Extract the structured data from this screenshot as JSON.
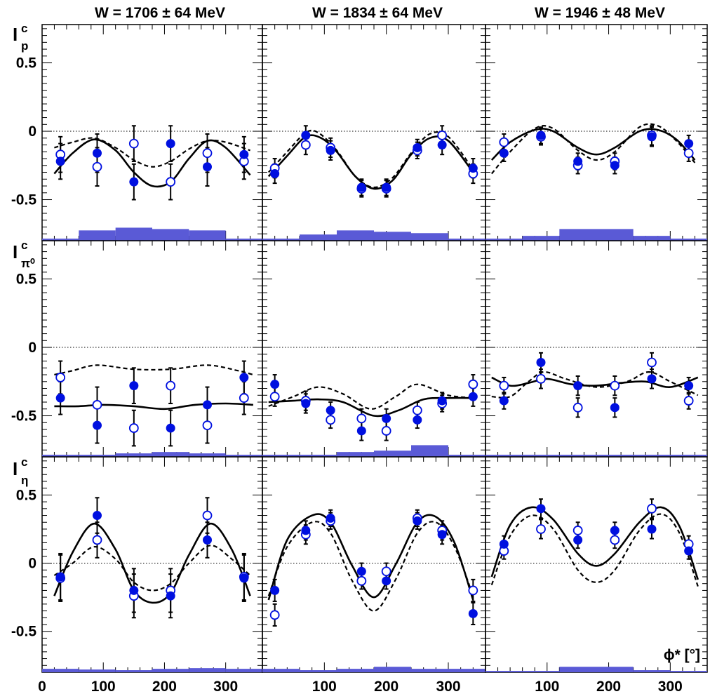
{
  "figure": {
    "col_titles": [
      "W = 1706 ± 64 MeV",
      "W = 1834 ± 64 MeV",
      "W = 1946 ± 48 MeV"
    ],
    "row_labels": [
      {
        "main": "I",
        "sup": "c",
        "sub": "p"
      },
      {
        "main": "I",
        "sup": "c",
        "sub": "π⁰"
      },
      {
        "main": "I",
        "sup": "c",
        "sub": "η"
      }
    ],
    "xlabel": "ϕ* [°]",
    "colors": {
      "filled": "#0010e0",
      "open": "#0010e0",
      "systematics": "#5a5ad6",
      "curve": "#000000"
    }
  },
  "chart_data": [
    {
      "type": "scatter",
      "row": 0,
      "col": 0,
      "x": [
        30,
        90,
        150,
        210,
        270,
        330
      ],
      "filled": [
        -0.22,
        -0.16,
        -0.37,
        -0.09,
        -0.26,
        -0.17
      ],
      "open": [
        -0.17,
        -0.26,
        -0.09,
        -0.37,
        -0.16,
        -0.22
      ],
      "err": [
        0.13,
        0.14,
        0.13,
        0.13,
        0.14,
        0.13
      ],
      "solid": [
        [
          20,
          -0.31
        ],
        [
          50,
          -0.16
        ],
        [
          85,
          -0.06
        ],
        [
          120,
          -0.14
        ],
        [
          150,
          -0.3
        ],
        [
          180,
          -0.4
        ],
        [
          210,
          -0.37
        ],
        [
          240,
          -0.2
        ],
        [
          270,
          -0.07
        ],
        [
          300,
          -0.12
        ],
        [
          340,
          -0.32
        ]
      ],
      "dashed": [
        [
          20,
          -0.12
        ],
        [
          50,
          -0.08
        ],
        [
          85,
          -0.05
        ],
        [
          120,
          -0.12
        ],
        [
          150,
          -0.21
        ],
        [
          180,
          -0.26
        ],
        [
          210,
          -0.22
        ],
        [
          240,
          -0.13
        ],
        [
          270,
          -0.07
        ],
        [
          300,
          -0.08
        ],
        [
          340,
          -0.14
        ]
      ],
      "syst": [
        [
          0,
          60,
          0.01
        ],
        [
          60,
          120,
          0.07
        ],
        [
          120,
          180,
          0.09
        ],
        [
          180,
          240,
          0.08
        ],
        [
          240,
          300,
          0.07
        ],
        [
          300,
          360,
          0.01
        ]
      ],
      "ylim": [
        -0.8,
        0.78
      ]
    },
    {
      "type": "scatter",
      "row": 0,
      "col": 1,
      "x": [
        20,
        70,
        110,
        160,
        200,
        250,
        290,
        340
      ],
      "filled": [
        -0.31,
        -0.03,
        -0.14,
        -0.41,
        -0.41,
        -0.12,
        -0.1,
        -0.27
      ],
      "open": [
        -0.27,
        -0.1,
        -0.12,
        -0.42,
        -0.42,
        -0.14,
        -0.03,
        -0.31
      ],
      "err": [
        0.07,
        0.07,
        0.07,
        0.06,
        0.06,
        0.06,
        0.07,
        0.07
      ],
      "solid": [
        [
          10,
          -0.33
        ],
        [
          40,
          -0.18
        ],
        [
          70,
          -0.04
        ],
        [
          95,
          -0.05
        ],
        [
          120,
          -0.15
        ],
        [
          150,
          -0.33
        ],
        [
          180,
          -0.42
        ],
        [
          210,
          -0.36
        ],
        [
          240,
          -0.17
        ],
        [
          270,
          -0.05
        ],
        [
          300,
          -0.07
        ],
        [
          340,
          -0.3
        ]
      ],
      "dashed": [
        [
          10,
          -0.3
        ],
        [
          40,
          -0.15
        ],
        [
          70,
          -0.01
        ],
        [
          90,
          -0.01
        ],
        [
          120,
          -0.14
        ],
        [
          150,
          -0.33
        ],
        [
          180,
          -0.41
        ],
        [
          210,
          -0.34
        ],
        [
          240,
          -0.16
        ],
        [
          270,
          -0.02
        ],
        [
          300,
          -0.04
        ],
        [
          340,
          -0.28
        ]
      ],
      "syst": [
        [
          0,
          60,
          0.01
        ],
        [
          60,
          120,
          0.04
        ],
        [
          120,
          180,
          0.07
        ],
        [
          180,
          240,
          0.06
        ],
        [
          240,
          300,
          0.05
        ],
        [
          300,
          360,
          0.01
        ]
      ],
      "ylim": [
        -0.8,
        0.78
      ]
    },
    {
      "type": "scatter",
      "row": 0,
      "col": 2,
      "x": [
        30,
        90,
        150,
        210,
        270,
        330
      ],
      "filled": [
        -0.16,
        -0.03,
        -0.22,
        -0.25,
        -0.04,
        -0.09
      ],
      "open": [
        -0.08,
        -0.04,
        -0.25,
        -0.22,
        -0.03,
        -0.16
      ],
      "err": [
        0.06,
        0.06,
        0.06,
        0.06,
        0.07,
        0.06
      ],
      "solid": [
        [
          10,
          -0.21
        ],
        [
          40,
          -0.08
        ],
        [
          80,
          0.01
        ],
        [
          110,
          0.0
        ],
        [
          150,
          -0.12
        ],
        [
          180,
          -0.17
        ],
        [
          210,
          -0.12
        ],
        [
          250,
          0.0
        ],
        [
          280,
          0.01
        ],
        [
          310,
          -0.06
        ],
        [
          340,
          -0.21
        ]
      ],
      "dashed": [
        [
          10,
          -0.31
        ],
        [
          40,
          -0.15
        ],
        [
          80,
          0.02
        ],
        [
          110,
          0.02
        ],
        [
          150,
          -0.14
        ],
        [
          180,
          -0.21
        ],
        [
          210,
          -0.15
        ],
        [
          250,
          0.03
        ],
        [
          280,
          0.04
        ],
        [
          310,
          -0.07
        ],
        [
          340,
          -0.23
        ]
      ],
      "syst": [
        [
          0,
          60,
          0.01
        ],
        [
          60,
          120,
          0.03
        ],
        [
          120,
          180,
          0.08
        ],
        [
          180,
          240,
          0.08
        ],
        [
          240,
          300,
          0.03
        ],
        [
          300,
          360,
          0.01
        ]
      ],
      "ylim": [
        -0.8,
        0.78
      ]
    },
    {
      "type": "scatter",
      "row": 1,
      "col": 0,
      "x": [
        30,
        90,
        150,
        210,
        270,
        330
      ],
      "filled": [
        -0.37,
        -0.57,
        -0.28,
        -0.59,
        -0.42,
        -0.22
      ],
      "open": [
        -0.22,
        -0.42,
        -0.59,
        -0.28,
        -0.57,
        -0.37
      ],
      "err": [
        0.12,
        0.13,
        0.13,
        0.13,
        0.13,
        0.12
      ],
      "solid": [
        [
          20,
          -0.43
        ],
        [
          60,
          -0.43
        ],
        [
          100,
          -0.42
        ],
        [
          150,
          -0.43
        ],
        [
          200,
          -0.45
        ],
        [
          250,
          -0.42
        ],
        [
          300,
          -0.41
        ],
        [
          345,
          -0.42
        ]
      ],
      "dashed": [
        [
          20,
          -0.2
        ],
        [
          50,
          -0.17
        ],
        [
          90,
          -0.13
        ],
        [
          150,
          -0.16
        ],
        [
          210,
          -0.16
        ],
        [
          270,
          -0.13
        ],
        [
          320,
          -0.17
        ],
        [
          345,
          -0.2
        ]
      ],
      "syst": [
        [
          0,
          60,
          0.01
        ],
        [
          60,
          120,
          0.01
        ],
        [
          120,
          180,
          0.02
        ],
        [
          180,
          240,
          0.03
        ],
        [
          240,
          300,
          0.02
        ],
        [
          300,
          360,
          0.01
        ]
      ],
      "ylim": [
        -0.8,
        0.78
      ]
    },
    {
      "type": "scatter",
      "row": 1,
      "col": 1,
      "x": [
        20,
        70,
        110,
        160,
        200,
        250,
        290,
        340
      ],
      "filled": [
        -0.27,
        -0.41,
        -0.46,
        -0.61,
        -0.52,
        -0.53,
        -0.39,
        -0.36
      ],
      "open": [
        -0.36,
        -0.39,
        -0.53,
        -0.52,
        -0.61,
        -0.46,
        -0.41,
        -0.27
      ],
      "err": [
        0.07,
        0.07,
        0.06,
        0.07,
        0.07,
        0.06,
        0.06,
        0.07
      ],
      "solid": [
        [
          10,
          -0.4
        ],
        [
          50,
          -0.39
        ],
        [
          90,
          -0.38
        ],
        [
          130,
          -0.4
        ],
        [
          180,
          -0.5
        ],
        [
          220,
          -0.46
        ],
        [
          260,
          -0.38
        ],
        [
          300,
          -0.37
        ],
        [
          345,
          -0.37
        ]
      ],
      "dashed": [
        [
          10,
          -0.43
        ],
        [
          50,
          -0.36
        ],
        [
          90,
          -0.29
        ],
        [
          130,
          -0.34
        ],
        [
          175,
          -0.45
        ],
        [
          215,
          -0.36
        ],
        [
          250,
          -0.27
        ],
        [
          300,
          -0.35
        ],
        [
          345,
          -0.37
        ]
      ],
      "syst": [
        [
          0,
          60,
          0.01
        ],
        [
          60,
          120,
          0.01
        ],
        [
          120,
          180,
          0.03
        ],
        [
          180,
          240,
          0.04
        ],
        [
          240,
          300,
          0.08
        ],
        [
          300,
          360,
          0.01
        ]
      ],
      "ylim": [
        -0.8,
        0.78
      ]
    },
    {
      "type": "scatter",
      "row": 1,
      "col": 2,
      "x": [
        30,
        90,
        150,
        210,
        270,
        330
      ],
      "filled": [
        -0.39,
        -0.11,
        -0.28,
        -0.44,
        -0.23,
        -0.28
      ],
      "open": [
        -0.28,
        -0.23,
        -0.44,
        -0.28,
        -0.11,
        -0.39
      ],
      "err": [
        0.06,
        0.07,
        0.07,
        0.07,
        0.07,
        0.06
      ],
      "solid": [
        [
          10,
          -0.22
        ],
        [
          40,
          -0.28
        ],
        [
          70,
          -0.26
        ],
        [
          100,
          -0.23
        ],
        [
          140,
          -0.27
        ],
        [
          180,
          -0.28
        ],
        [
          220,
          -0.26
        ],
        [
          260,
          -0.25
        ],
        [
          300,
          -0.29
        ],
        [
          345,
          -0.22
        ]
      ],
      "dashed": [
        [
          10,
          -0.36
        ],
        [
          40,
          -0.36
        ],
        [
          70,
          -0.25
        ],
        [
          95,
          -0.18
        ],
        [
          130,
          -0.23
        ],
        [
          180,
          -0.29
        ],
        [
          230,
          -0.25
        ],
        [
          265,
          -0.18
        ],
        [
          300,
          -0.25
        ],
        [
          345,
          -0.35
        ]
      ],
      "syst": [
        [
          0,
          60,
          0.01
        ],
        [
          60,
          120,
          0.01
        ],
        [
          120,
          180,
          0.01
        ],
        [
          180,
          240,
          0.01
        ],
        [
          240,
          300,
          0.01
        ],
        [
          300,
          360,
          0.01
        ]
      ],
      "ylim": [
        -0.8,
        0.78
      ]
    },
    {
      "type": "scatter",
      "row": 2,
      "col": 0,
      "x": [
        30,
        90,
        150,
        210,
        270,
        330
      ],
      "filled": [
        -0.1,
        0.35,
        -0.2,
        -0.24,
        0.17,
        -0.11
      ],
      "open": [
        -0.11,
        0.17,
        -0.24,
        -0.2,
        0.35,
        -0.1
      ],
      "err": [
        0.17,
        0.13,
        0.16,
        0.16,
        0.13,
        0.17
      ],
      "solid": [
        [
          20,
          -0.24
        ],
        [
          50,
          0.08
        ],
        [
          85,
          0.29
        ],
        [
          120,
          0.1
        ],
        [
          150,
          -0.2
        ],
        [
          180,
          -0.29
        ],
        [
          210,
          -0.22
        ],
        [
          240,
          0.06
        ],
        [
          275,
          0.29
        ],
        [
          310,
          0.1
        ],
        [
          340,
          -0.24
        ]
      ],
      "dashed": [
        [
          20,
          -0.09
        ],
        [
          50,
          0.0
        ],
        [
          85,
          0.12
        ],
        [
          120,
          0.03
        ],
        [
          150,
          -0.14
        ],
        [
          180,
          -0.2
        ],
        [
          210,
          -0.15
        ],
        [
          240,
          0.0
        ],
        [
          275,
          0.13
        ],
        [
          310,
          0.03
        ],
        [
          340,
          -0.09
        ]
      ],
      "syst": [
        [
          0,
          60,
          0.02
        ],
        [
          60,
          120,
          0.015
        ],
        [
          120,
          180,
          0.01
        ],
        [
          180,
          240,
          0.02
        ],
        [
          240,
          300,
          0.025
        ],
        [
          300,
          360,
          0.02
        ]
      ],
      "ylim": [
        -0.8,
        0.78
      ]
    },
    {
      "type": "scatter",
      "row": 2,
      "col": 1,
      "x": [
        20,
        70,
        110,
        160,
        200,
        250,
        290,
        340
      ],
      "filled": [
        -0.2,
        0.24,
        0.33,
        -0.06,
        -0.13,
        0.31,
        0.21,
        -0.37
      ],
      "open": [
        -0.38,
        0.21,
        0.31,
        -0.13,
        -0.06,
        0.33,
        0.24,
        -0.2
      ],
      "err": [
        0.08,
        0.07,
        0.06,
        0.06,
        0.06,
        0.06,
        0.07,
        0.08
      ],
      "solid": [
        [
          10,
          -0.27
        ],
        [
          40,
          0.17
        ],
        [
          80,
          0.35
        ],
        [
          110,
          0.3
        ],
        [
          145,
          -0.02
        ],
        [
          180,
          -0.25
        ],
        [
          215,
          -0.01
        ],
        [
          250,
          0.3
        ],
        [
          280,
          0.34
        ],
        [
          310,
          0.15
        ],
        [
          340,
          -0.27
        ]
      ],
      "dashed": [
        [
          10,
          -0.24
        ],
        [
          40,
          0.12
        ],
        [
          80,
          0.3
        ],
        [
          110,
          0.22
        ],
        [
          145,
          -0.13
        ],
        [
          180,
          -0.35
        ],
        [
          215,
          -0.12
        ],
        [
          250,
          0.22
        ],
        [
          280,
          0.3
        ],
        [
          310,
          0.12
        ],
        [
          340,
          -0.24
        ]
      ],
      "syst": [
        [
          0,
          60,
          0.02
        ],
        [
          60,
          120,
          0.01
        ],
        [
          120,
          180,
          0.02
        ],
        [
          180,
          240,
          0.035
        ],
        [
          240,
          300,
          0.02
        ],
        [
          300,
          360,
          0.02
        ]
      ],
      "ylim": [
        -0.8,
        0.78
      ]
    },
    {
      "type": "scatter",
      "row": 2,
      "col": 2,
      "x": [
        30,
        90,
        150,
        210,
        270,
        330
      ],
      "filled": [
        0.14,
        0.4,
        0.17,
        0.24,
        0.25,
        0.09
      ],
      "open": [
        0.09,
        0.25,
        0.24,
        0.17,
        0.4,
        0.14
      ],
      "err": [
        0.06,
        0.07,
        0.06,
        0.06,
        0.07,
        0.06
      ],
      "solid": [
        [
          10,
          -0.1
        ],
        [
          40,
          0.28
        ],
        [
          75,
          0.41
        ],
        [
          110,
          0.32
        ],
        [
          150,
          0.07
        ],
        [
          180,
          -0.02
        ],
        [
          210,
          0.07
        ],
        [
          250,
          0.3
        ],
        [
          285,
          0.41
        ],
        [
          315,
          0.27
        ],
        [
          345,
          -0.12
        ]
      ],
      "dashed": [
        [
          10,
          -0.16
        ],
        [
          40,
          0.2
        ],
        [
          75,
          0.35
        ],
        [
          110,
          0.25
        ],
        [
          150,
          -0.05
        ],
        [
          180,
          -0.14
        ],
        [
          210,
          -0.05
        ],
        [
          250,
          0.24
        ],
        [
          285,
          0.36
        ],
        [
          315,
          0.22
        ],
        [
          345,
          -0.17
        ]
      ],
      "syst": [
        [
          0,
          60,
          0.005
        ],
        [
          60,
          120,
          0.005
        ],
        [
          120,
          180,
          0.035
        ],
        [
          180,
          240,
          0.035
        ],
        [
          240,
          300,
          0.01
        ],
        [
          300,
          360,
          0.005
        ]
      ],
      "ylim": [
        -0.8,
        0.78
      ]
    }
  ],
  "axes": {
    "xticks": [
      "0",
      "100",
      "200",
      "300"
    ],
    "yticks": [
      "0.5",
      "0",
      "-0.5"
    ]
  }
}
